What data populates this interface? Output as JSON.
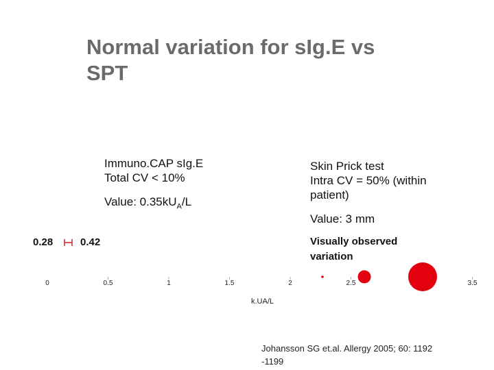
{
  "title": {
    "line1": "Normal variation for sIg.E  vs",
    "line2": "SPT"
  },
  "immuno": {
    "line1": "Immuno.CAP sIg.E",
    "line2": "Total CV < 10%",
    "value_prefix": "Value:  0.35kU",
    "value_sub": "A",
    "value_suffix": "/L"
  },
  "spt": {
    "line1": "Skin Prick test",
    "line2": "Intra CV = 50% (within",
    "line3": "patient)",
    "value": "Value: 3 mm",
    "visual1": "Visually observed",
    "visual2": "variation"
  },
  "range": {
    "low": "0.28",
    "high": "0.42"
  },
  "axis": {
    "tick_labels": [
      "0",
      "0.5",
      "1",
      "1.5",
      "2",
      "2.5",
      "3",
      "3.5"
    ],
    "ticks": [
      0,
      0.5,
      1,
      1.5,
      2,
      2.5,
      3,
      3.5
    ],
    "unit": "k.UA/L"
  },
  "reference": {
    "line1": "Johansson SG et.al. Allergy 2005; 60: 1192",
    "line2": "-1199"
  },
  "colors": {
    "title": "#6b6b6b",
    "marker": "#e3000f",
    "range_bar": "#cc2222"
  },
  "circles": [
    {
      "size": "small"
    },
    {
      "size": "medium"
    },
    {
      "size": "large"
    }
  ]
}
